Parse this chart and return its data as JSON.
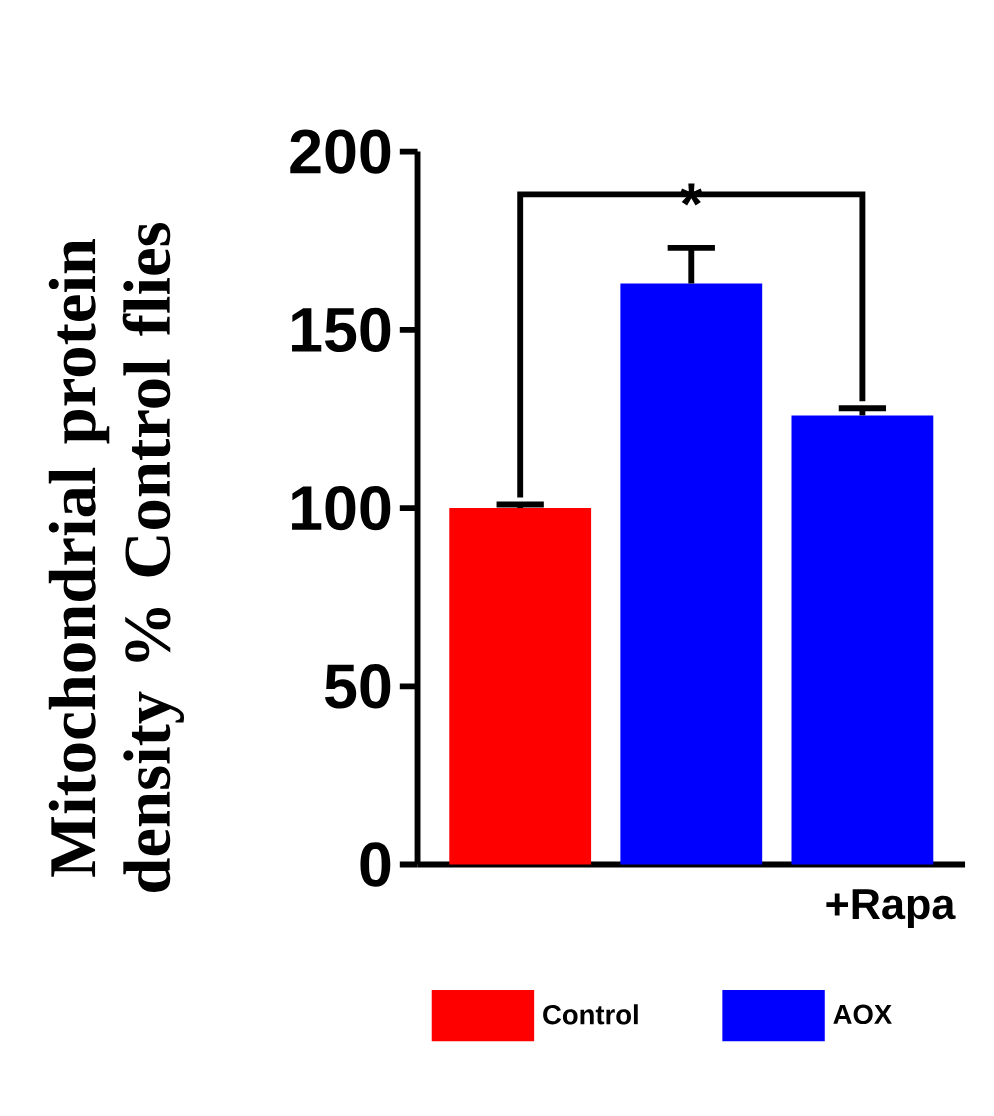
{
  "chart_data": {
    "type": "bar",
    "ylabel": "Mitochondrial protein density % Control flies",
    "categories": [
      null,
      null,
      "+Rapa"
    ],
    "series": [
      {
        "name": "Control",
        "color": "#ff0000",
        "values": [
          100,
          null,
          null
        ],
        "errors": [
          1,
          null,
          null
        ]
      },
      {
        "name": "AOX",
        "color": "#0000ff",
        "values": [
          null,
          163,
          126
        ],
        "errors": [
          null,
          10,
          2
        ]
      }
    ],
    "ylim": [
      0,
      200
    ],
    "yticks": [
      0,
      50,
      100,
      150,
      200
    ],
    "grid": false,
    "legend": "bottom",
    "annotations": [
      "*"
    ]
  }
}
